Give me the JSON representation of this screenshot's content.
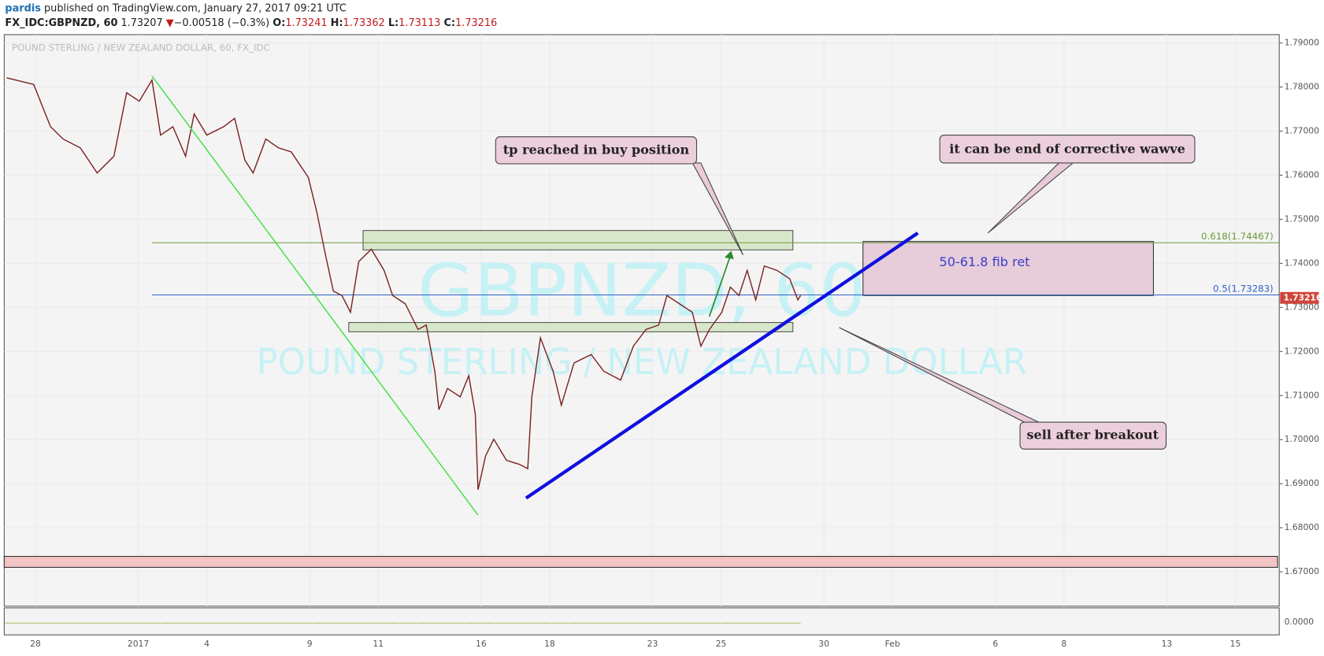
{
  "header": {
    "author": "pardis",
    "published": "published on TradingView.com, January 27, 2017 09:21 UTC",
    "symbol": "FX_IDC:GBPNZD, 60",
    "last": "1.73207",
    "change_arrow": "▼",
    "change": "−0.00518 (−0.3%)",
    "o_label": "O:",
    "open": "1.73241",
    "h_label": "H:",
    "high": "1.73362",
    "l_label": "L:",
    "low": "1.73113",
    "c_label": "C:",
    "close": "1.73216"
  },
  "chart_data": {
    "type": "line",
    "title": "POUND STERLING / NEW ZEALAND DOLLAR, 60, FX_IDC",
    "watermark": "GBPNZD, 60",
    "watermark_subtitle": "POUND STERLING / NEW ZEALAND DOLLAR",
    "x": [
      -0.84,
      -0.05,
      0.44,
      0.81,
      1.31,
      1.8,
      2.29,
      2.66,
      3.03,
      3.4,
      3.65,
      4.01,
      4.38,
      4.63,
      5,
      5.49,
      5.81,
      6.11,
      6.35,
      6.72,
      7.09,
      7.46,
      7.96,
      8.2,
      8.45,
      8.69,
      8.94,
      9.19,
      9.43,
      9.8,
      10.17,
      10.42,
      10.79,
      11.16,
      11.4,
      11.65,
      11.77,
      12.02,
      12.39,
      12.64,
      12.83,
      12.91,
      13.13,
      13.37,
      13.74,
      14.11,
      14.36,
      14.48,
      14.73,
      15.1,
      15.34,
      15.71,
      16.21,
      16.58,
      17.07,
      17.44,
      17.81,
      18.18,
      18.42,
      18.79,
      19.16,
      19.41,
      19.66,
      20.02,
      20.27,
      20.52,
      20.76,
      21.01,
      21.26,
      21.63,
      22,
      22.24,
      22.32
    ],
    "series": [
      {
        "name": "GBPNZD",
        "color": "#7a1f1f",
        "values": [
          1.7821,
          1.7806,
          1.771,
          1.7682,
          1.7662,
          1.7605,
          1.7643,
          1.7787,
          1.7768,
          1.7816,
          1.7691,
          1.771,
          1.7643,
          1.7739,
          1.7691,
          1.771,
          1.7729,
          1.7634,
          1.7605,
          1.7682,
          1.7662,
          1.7653,
          1.7595,
          1.7519,
          1.7423,
          1.7337,
          1.7327,
          1.7289,
          1.7404,
          1.7432,
          1.7384,
          1.7327,
          1.7308,
          1.725,
          1.726,
          1.7155,
          1.7068,
          1.7116,
          1.7097,
          1.7145,
          1.7059,
          1.6886,
          1.6963,
          1.7001,
          1.6953,
          1.6944,
          1.6934,
          1.7097,
          1.7231,
          1.7155,
          1.7078,
          1.7174,
          1.7193,
          1.7155,
          1.7135,
          1.7212,
          1.725,
          1.726,
          1.7327,
          1.7308,
          1.7289,
          1.7212,
          1.725,
          1.7289,
          1.7346,
          1.7327,
          1.7384,
          1.7317,
          1.7394,
          1.7384,
          1.7365,
          1.7317,
          1.7327
        ]
      }
    ],
    "last_price": {
      "value": 1.73216,
      "label": "1.73216"
    },
    "xlim": [
      -0.91,
      36.28
    ],
    "xticks": [
      {
        "value": 0,
        "label": "28"
      },
      {
        "value": 3,
        "label": "2017"
      },
      {
        "value": 5,
        "label": "4"
      },
      {
        "value": 8,
        "label": "9"
      },
      {
        "value": 10,
        "label": "11"
      },
      {
        "value": 13,
        "label": "16"
      },
      {
        "value": 15,
        "label": "18"
      },
      {
        "value": 18,
        "label": "23"
      },
      {
        "value": 20,
        "label": "25"
      },
      {
        "value": 23,
        "label": "30"
      },
      {
        "value": 25,
        "label": "Feb"
      },
      {
        "value": 28,
        "label": "6"
      },
      {
        "value": 30,
        "label": "8"
      },
      {
        "value": 33,
        "label": "13"
      },
      {
        "value": 35,
        "label": "15"
      }
    ],
    "ylim": [
      1.6622,
      1.7919
    ],
    "yticks": [
      {
        "value": 1.67,
        "label": "1.67000"
      },
      {
        "value": 1.68,
        "label": "1.68000"
      },
      {
        "value": 1.69,
        "label": "1.69000"
      },
      {
        "value": 1.7,
        "label": "1.70000"
      },
      {
        "value": 1.71,
        "label": "1.71000"
      },
      {
        "value": 1.72,
        "label": "1.72000"
      },
      {
        "value": 1.73,
        "label": "1.73000"
      },
      {
        "value": 1.74,
        "label": "1.74000"
      },
      {
        "value": 1.75,
        "label": "1.75000"
      },
      {
        "value": 1.76,
        "label": "1.76000"
      },
      {
        "value": 1.77,
        "label": "1.77000"
      },
      {
        "value": 1.78,
        "label": "1.78000"
      },
      {
        "value": 1.79,
        "label": "1.79000"
      }
    ],
    "oscillator_ticks": [
      {
        "value": 0,
        "label": "0.0000"
      }
    ],
    "fib_levels": [
      {
        "value": 1.74467,
        "label": "0.618(1.74467)",
        "color": "#6a9a3a"
      },
      {
        "value": 1.73283,
        "label": "0.5(1.73283)",
        "color": "#2f62c8"
      }
    ],
    "annotations": [
      "tp reached in buy position",
      "it can be end of corrective wawve",
      "sell after breakout",
      "50-61.8 fib ret"
    ]
  }
}
